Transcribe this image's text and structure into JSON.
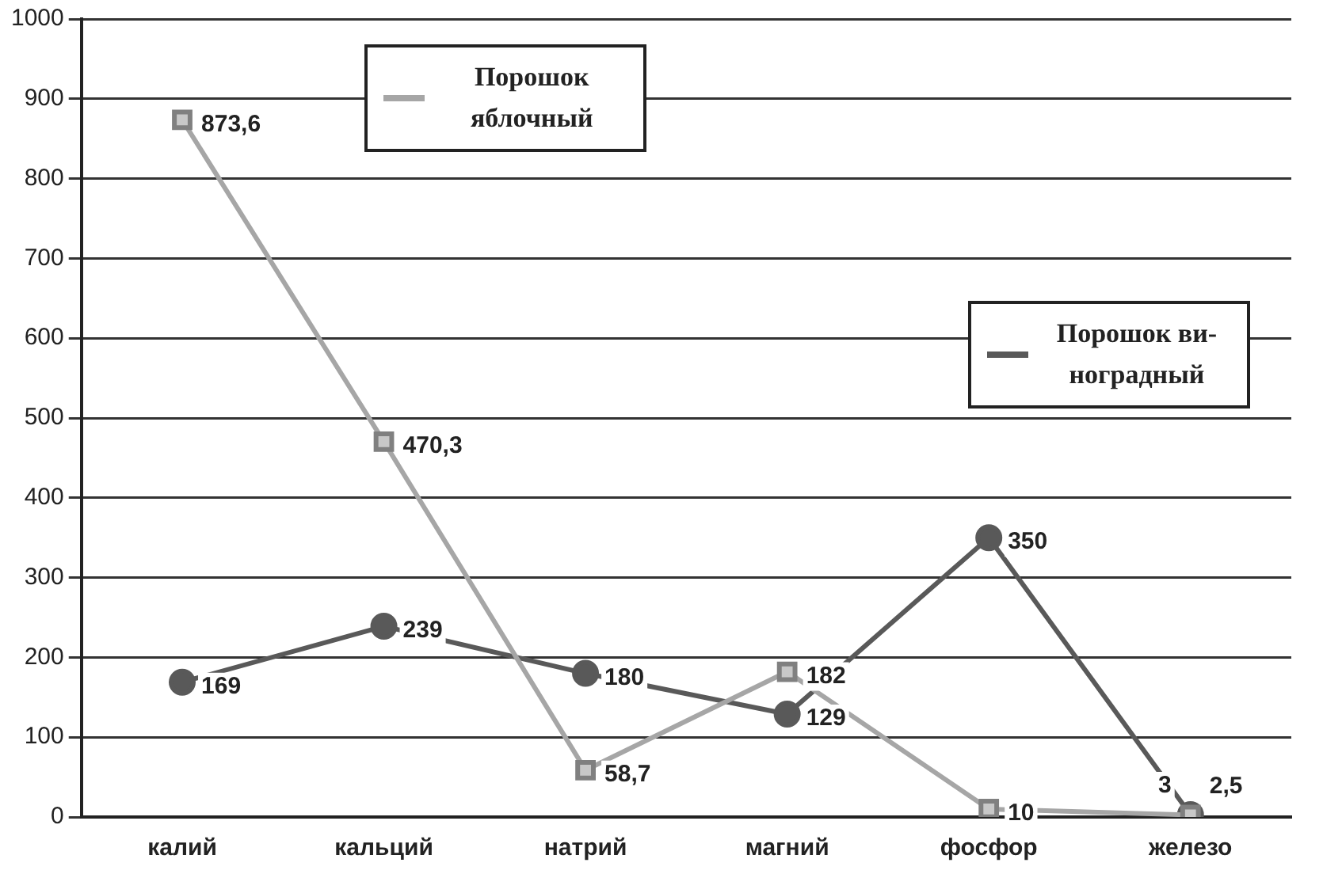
{
  "chart_data": {
    "type": "line",
    "categories": [
      "калий",
      "кальций",
      "натрий",
      "магний",
      "фосфор",
      "железо"
    ],
    "series": [
      {
        "name": "Порошок яблочный",
        "color": "#a6a6a6",
        "marker": "square",
        "values": [
          873.6,
          470.3,
          58.7,
          182,
          10,
          2.5
        ],
        "value_labels": [
          "873,6",
          "470,3",
          "58,7",
          "182",
          "10",
          "2,5"
        ]
      },
      {
        "name": "Порошок ви-ноградный",
        "color": "#595959",
        "marker": "circle",
        "values": [
          169,
          239,
          180,
          129,
          350,
          3
        ],
        "value_labels": [
          "169",
          "239",
          "180",
          "129",
          "350",
          "3"
        ]
      }
    ],
    "ylim": [
      0,
      1000
    ],
    "yticks": [
      0,
      100,
      200,
      300,
      400,
      500,
      600,
      700,
      800,
      900,
      1000
    ],
    "grid": "y",
    "legend": "top"
  }
}
